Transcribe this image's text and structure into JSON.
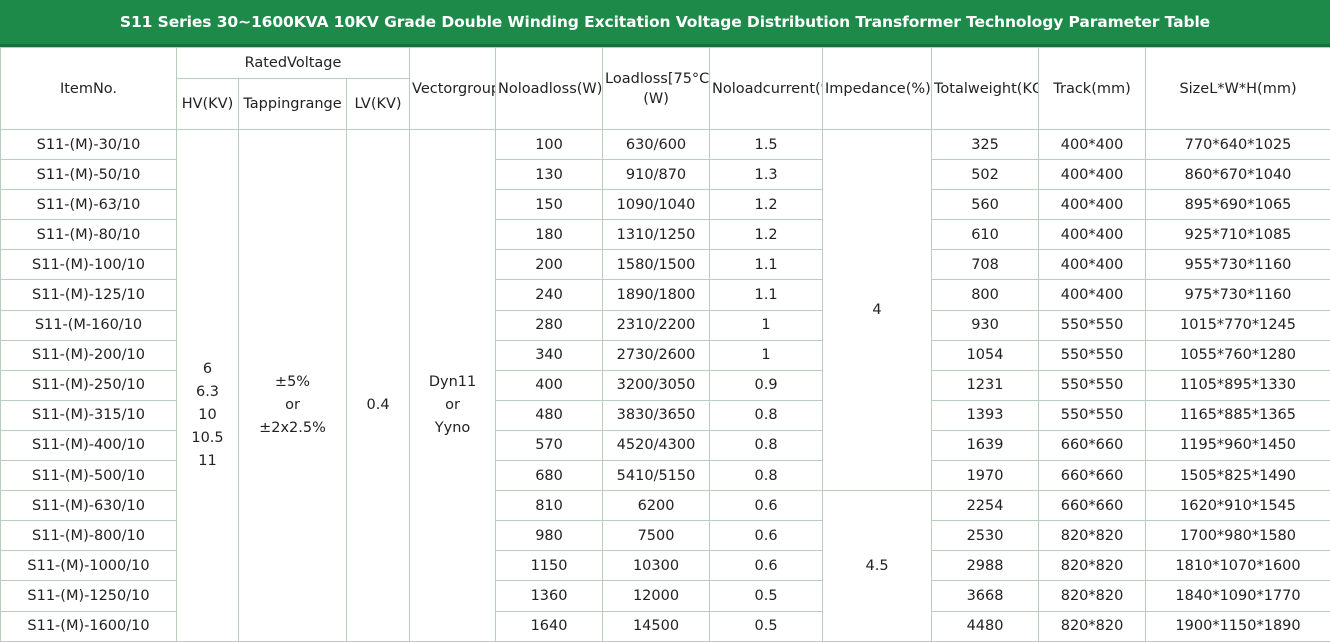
{
  "title": "S11 Series 30~1600KVA 10KV Grade Double Winding Excitation Voltage Distribution Transformer Technology Parameter Table",
  "headers": {
    "item_no": "ItemNo.",
    "rated_voltage": "RatedVoltage",
    "hv": "HV(KV)",
    "tapping": "Tappingrange",
    "lv": "LV(KV)",
    "vector": "Vectorgroup",
    "noload_loss": "Noloadloss(W)",
    "load_loss": "Loadloss[75°C](W)",
    "noload_current": "Noloadcurrent(%)",
    "impedance": "Impedance(%)",
    "total_weight": "Totalweight(KG)",
    "track": "Track(mm)",
    "size": "SizeL*W*H(mm)"
  },
  "merged": {
    "hv_values": [
      "6",
      "6.3",
      "10",
      "10.5",
      "11"
    ],
    "tapping_values": [
      "±5%",
      "or",
      "±2x2.5%"
    ],
    "lv_value": "0.4",
    "vector_values": [
      "Dyn11",
      "or",
      "Yyno"
    ],
    "impedance_upper": "4",
    "impedance_lower": "4.5"
  },
  "rows": [
    {
      "item": "S11-(M)-30/10",
      "noload": "100",
      "load": "630/600",
      "current": "1.5",
      "weight": "325",
      "track": "400*400",
      "size": "770*640*1025"
    },
    {
      "item": "S11-(M)-50/10",
      "noload": "130",
      "load": "910/870",
      "current": "1.3",
      "weight": "502",
      "track": "400*400",
      "size": "860*670*1040"
    },
    {
      "item": "S11-(M)-63/10",
      "noload": "150",
      "load": "1090/1040",
      "current": "1.2",
      "weight": "560",
      "track": "400*400",
      "size": "895*690*1065"
    },
    {
      "item": "S11-(M)-80/10",
      "noload": "180",
      "load": "1310/1250",
      "current": "1.2",
      "weight": "610",
      "track": "400*400",
      "size": "925*710*1085"
    },
    {
      "item": "S11-(M)-100/10",
      "noload": "200",
      "load": "1580/1500",
      "current": "1.1",
      "weight": "708",
      "track": "400*400",
      "size": "955*730*1160"
    },
    {
      "item": "S11-(M)-125/10",
      "noload": "240",
      "load": "1890/1800",
      "current": "1.1",
      "weight": "800",
      "track": "400*400",
      "size": "975*730*1160"
    },
    {
      "item": "S11-(M-160/10",
      "noload": "280",
      "load": "2310/2200",
      "current": "1",
      "weight": "930",
      "track": "550*550",
      "size": "1015*770*1245"
    },
    {
      "item": "S11-(M)-200/10",
      "noload": "340",
      "load": "2730/2600",
      "current": "1",
      "weight": "1054",
      "track": "550*550",
      "size": "1055*760*1280"
    },
    {
      "item": "S11-(M)-250/10",
      "noload": "400",
      "load": "3200/3050",
      "current": "0.9",
      "weight": "1231",
      "track": "550*550",
      "size": "1105*895*1330"
    },
    {
      "item": "S11-(M)-315/10",
      "noload": "480",
      "load": "3830/3650",
      "current": "0.8",
      "weight": "1393",
      "track": "550*550",
      "size": "1165*885*1365"
    },
    {
      "item": "S11-(M)-400/10",
      "noload": "570",
      "load": "4520/4300",
      "current": "0.8",
      "weight": "1639",
      "track": "660*660",
      "size": "1195*960*1450"
    },
    {
      "item": "S11-(M)-500/10",
      "noload": "680",
      "load": "5410/5150",
      "current": "0.8",
      "weight": "1970",
      "track": "660*660",
      "size": "1505*825*1490"
    },
    {
      "item": "S11-(M)-630/10",
      "noload": "810",
      "load": "6200",
      "current": "0.6",
      "weight": "2254",
      "track": "660*660",
      "size": "1620*910*1545"
    },
    {
      "item": "S11-(M)-800/10",
      "noload": "980",
      "load": "7500",
      "current": "0.6",
      "weight": "2530",
      "track": "820*820",
      "size": "1700*980*1580"
    },
    {
      "item": "S11-(M)-1000/10",
      "noload": "1150",
      "load": "10300",
      "current": "0.6",
      "weight": "2988",
      "track": "820*820",
      "size": "1810*1070*1600"
    },
    {
      "item": "S11-(M)-1250/10",
      "noload": "1360",
      "load": "12000",
      "current": "0.5",
      "weight": "3668",
      "track": "820*820",
      "size": "1840*1090*1770"
    },
    {
      "item": "S11-(M)-1600/10",
      "noload": "1640",
      "load": "14500",
      "current": "0.5",
      "weight": "4480",
      "track": "820*820",
      "size": "1900*1150*1890"
    }
  ]
}
